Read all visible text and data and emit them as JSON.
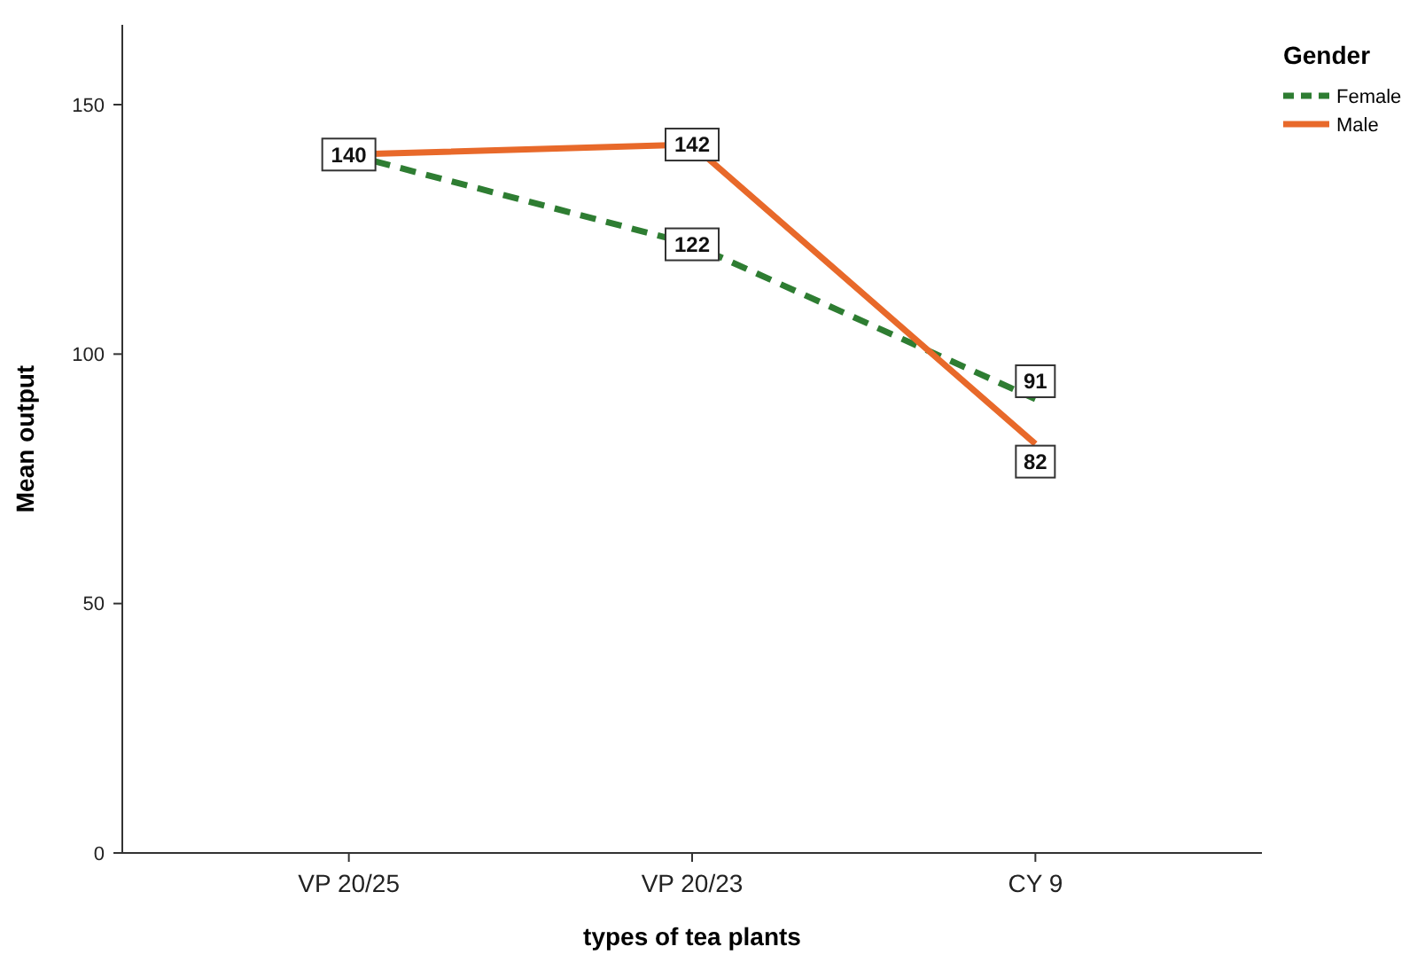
{
  "chart_data": {
    "type": "line",
    "xlabel": "types of tea plants",
    "ylabel": "Mean output",
    "legend_title": "Gender",
    "categories": [
      "VP 20/25",
      "VP 20/23",
      "CY 9"
    ],
    "series": [
      {
        "name": "Female",
        "color": "#2e7d32",
        "values": [
          140,
          122,
          91
        ],
        "value_labels": [
          "140",
          "122",
          "91"
        ],
        "line_style": "dashed"
      },
      {
        "name": "Male",
        "color": "#e8692a",
        "values": [
          140,
          142,
          82
        ],
        "value_labels": [
          null,
          "142",
          "82"
        ],
        "line_style": "solid"
      }
    ],
    "ylim": [
      0,
      166
    ],
    "yticks": [
      0,
      50,
      100,
      150
    ],
    "legend": "top right"
  }
}
